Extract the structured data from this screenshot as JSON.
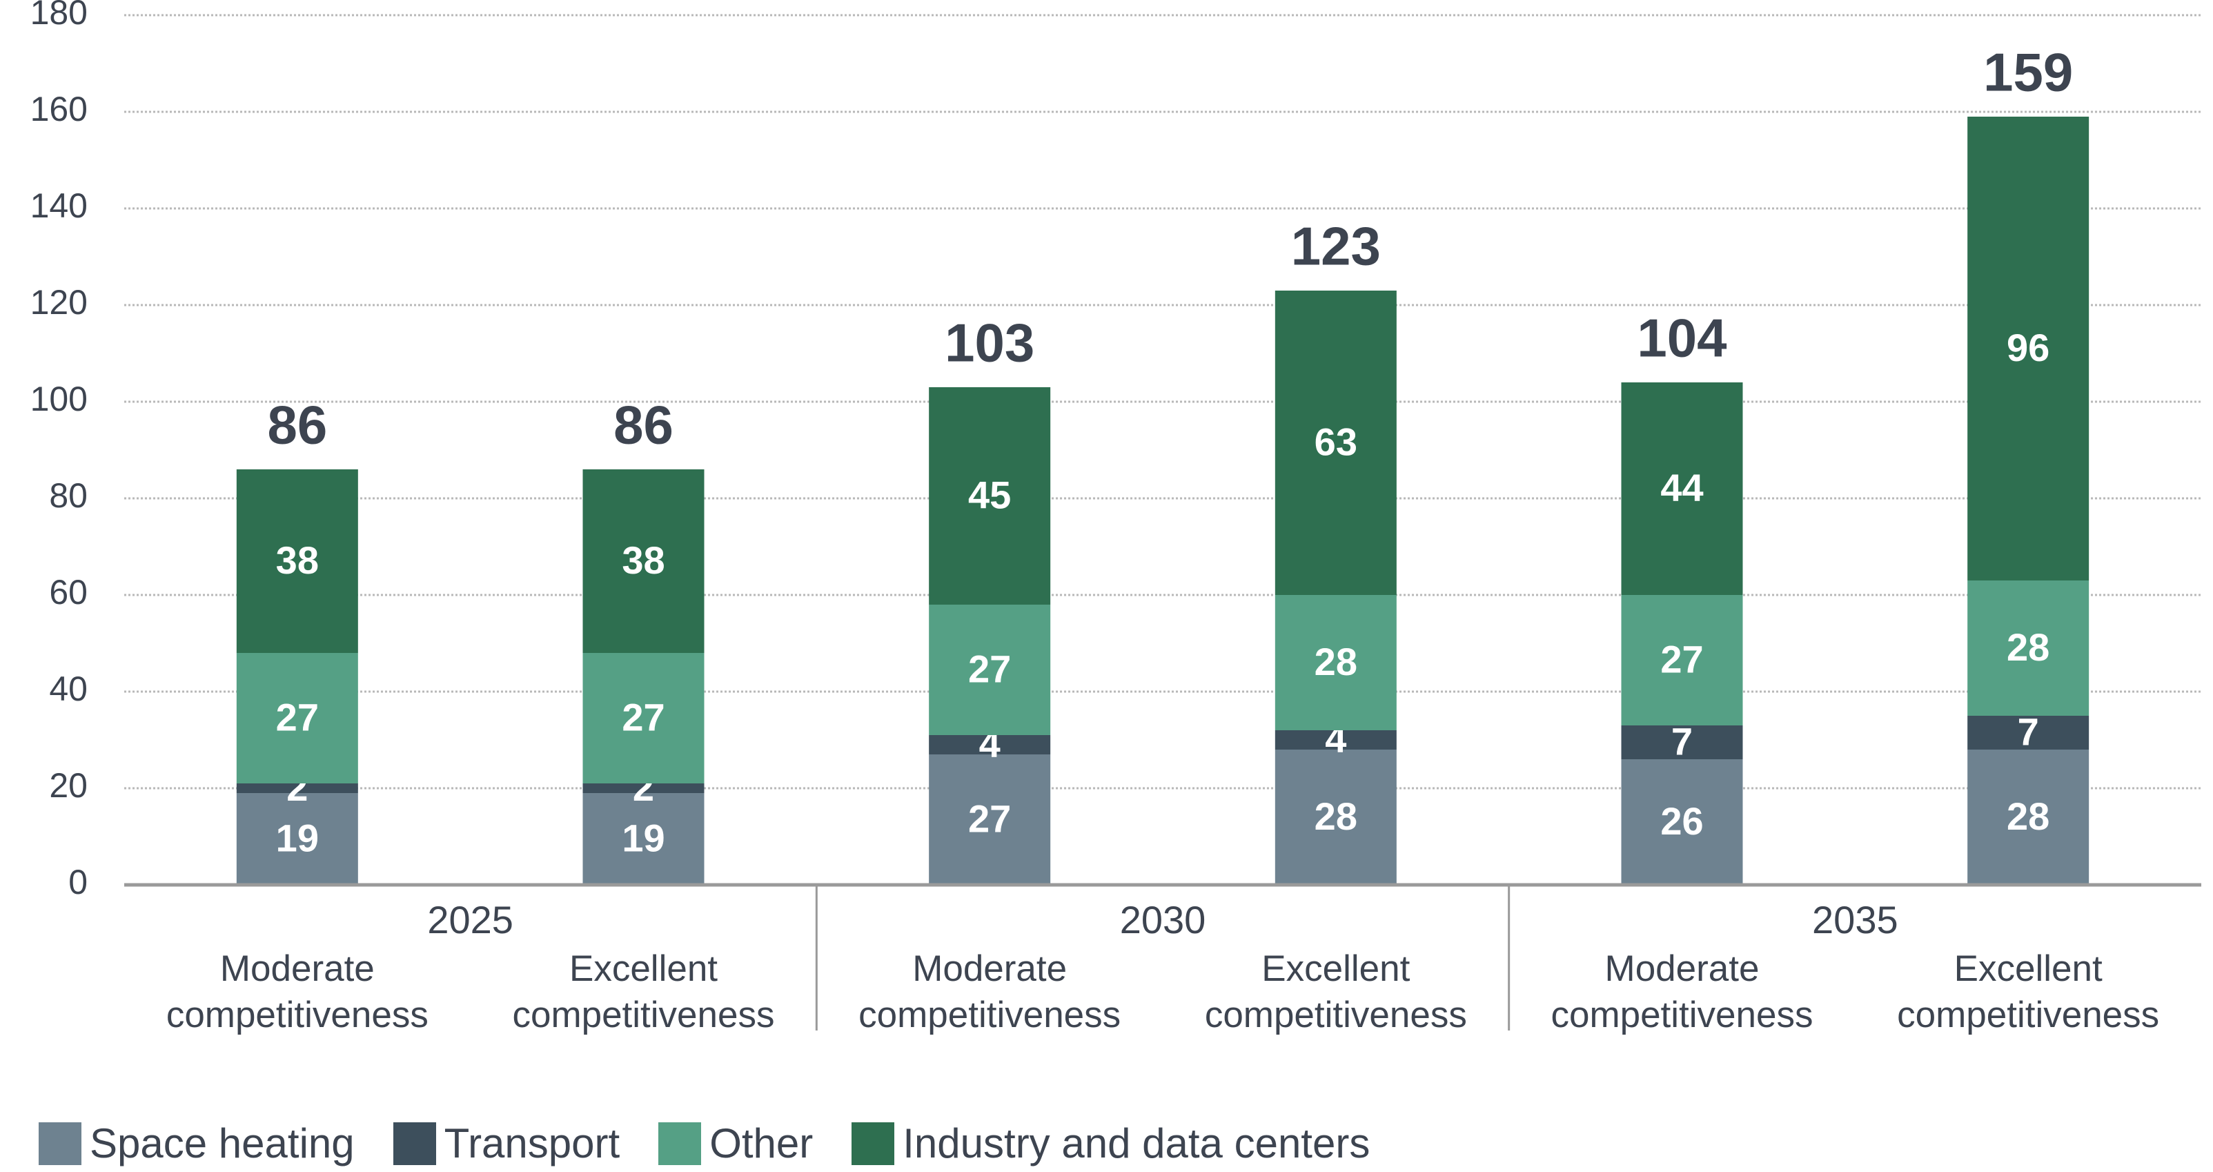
{
  "chart_data": {
    "type": "stacked_bar",
    "groups": [
      "2025",
      "2030",
      "2035"
    ],
    "categories": [
      "Moderate competitiveness",
      "Excellent competitiveness",
      "Moderate competitiveness",
      "Excellent competitiveness",
      "Moderate competitiveness",
      "Excellent competitiveness"
    ],
    "series": [
      {
        "name": "Space heating",
        "color": "#6e8290",
        "values": [
          19,
          19,
          27,
          28,
          26,
          28
        ]
      },
      {
        "name": "Transport",
        "color": "#3d4f5c",
        "values": [
          2,
          2,
          4,
          4,
          7,
          7
        ]
      },
      {
        "name": "Other",
        "color": "#55a085",
        "values": [
          27,
          27,
          27,
          28,
          27,
          28
        ]
      },
      {
        "name": "Industry and data centers",
        "color": "#2e6f50",
        "values": [
          38,
          38,
          45,
          63,
          44,
          96
        ]
      }
    ],
    "totals": [
      86,
      86,
      103,
      123,
      104,
      159
    ],
    "ylim": [
      0,
      180
    ],
    "yticks": [
      0,
      20,
      40,
      60,
      80,
      100,
      120,
      140,
      160,
      180
    ],
    "grid": true
  }
}
